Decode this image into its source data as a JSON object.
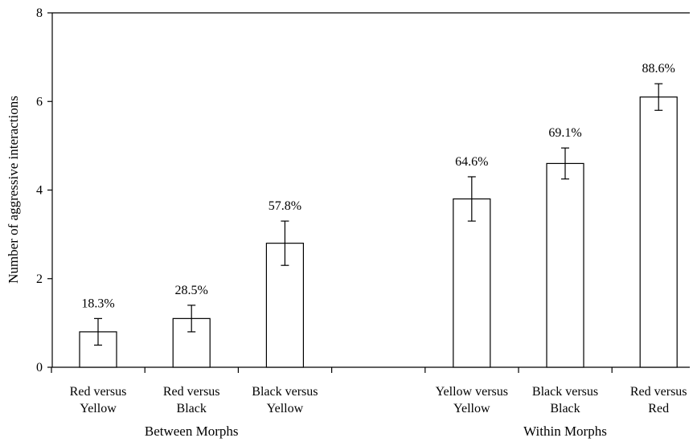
{
  "chart_data": {
    "type": "bar",
    "ylabel": "Number of aggressive interactions",
    "xlabel": "",
    "ylim": [
      0,
      8
    ],
    "yticks": [
      0,
      2,
      4,
      6,
      8
    ],
    "grid": false,
    "groups": [
      {
        "name": "Between Morphs",
        "categories": [
          0,
          1,
          2
        ]
      },
      {
        "name": "Within Morphs",
        "categories": [
          3,
          4,
          5
        ]
      }
    ],
    "categories": [
      {
        "line1": "Red versus",
        "line2": "Yellow"
      },
      {
        "line1": "Red versus",
        "line2": "Black"
      },
      {
        "line1": "Black versus",
        "line2": "Yellow"
      },
      {
        "line1": "Yellow versus",
        "line2": "Yellow"
      },
      {
        "line1": "Black versus",
        "line2": "Black"
      },
      {
        "line1": "Red versus",
        "line2": "Red"
      }
    ],
    "values": [
      0.8,
      1.1,
      2.8,
      3.8,
      4.6,
      6.1
    ],
    "error_low": [
      0.5,
      0.8,
      2.3,
      3.3,
      4.25,
      5.8
    ],
    "error_high": [
      1.1,
      1.4,
      3.3,
      4.3,
      4.95,
      6.4
    ],
    "bar_labels": [
      "18.3%",
      "28.5%",
      "57.8%",
      "64.6%",
      "69.1%",
      "88.6%"
    ]
  }
}
